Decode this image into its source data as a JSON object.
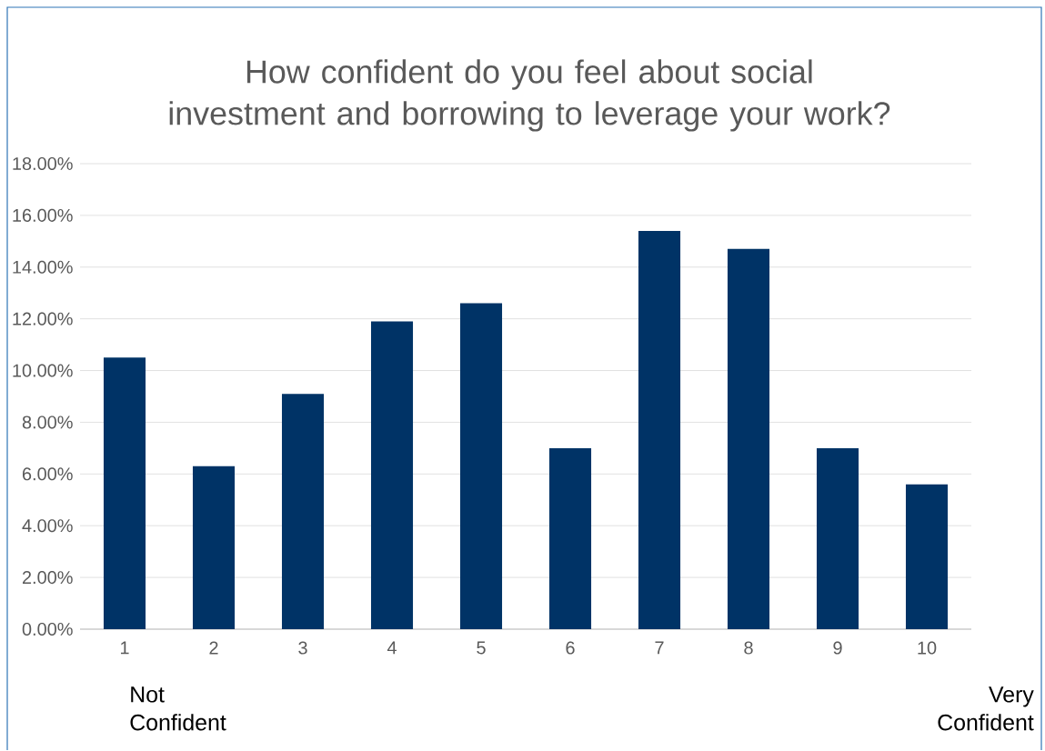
{
  "chart_data": {
    "type": "bar",
    "title": "How confident do you feel about social investment and borrowing to leverage your work?",
    "categories": [
      "1",
      "2",
      "3",
      "4",
      "5",
      "6",
      "7",
      "8",
      "9",
      "10"
    ],
    "values": [
      10.5,
      6.3,
      9.1,
      11.9,
      12.6,
      7.0,
      15.4,
      14.7,
      7.0,
      5.6
    ],
    "color": "#003366",
    "ylim": [
      0,
      18
    ],
    "yticks": [
      {
        "value": 0,
        "label": "0.00%"
      },
      {
        "value": 2,
        "label": "2.00%"
      },
      {
        "value": 4,
        "label": "4.00%"
      },
      {
        "value": 6,
        "label": "6.00%"
      },
      {
        "value": 8,
        "label": "8.00%"
      },
      {
        "value": 10,
        "label": "10.00%"
      },
      {
        "value": 12,
        "label": "12.00%"
      },
      {
        "value": 14,
        "label": "14.00%"
      },
      {
        "value": 16,
        "label": "16.00%"
      },
      {
        "value": 18,
        "label": "18.00%"
      }
    ],
    "grid": "y",
    "annotations": [
      "Not Confident",
      "Very Confident"
    ]
  }
}
